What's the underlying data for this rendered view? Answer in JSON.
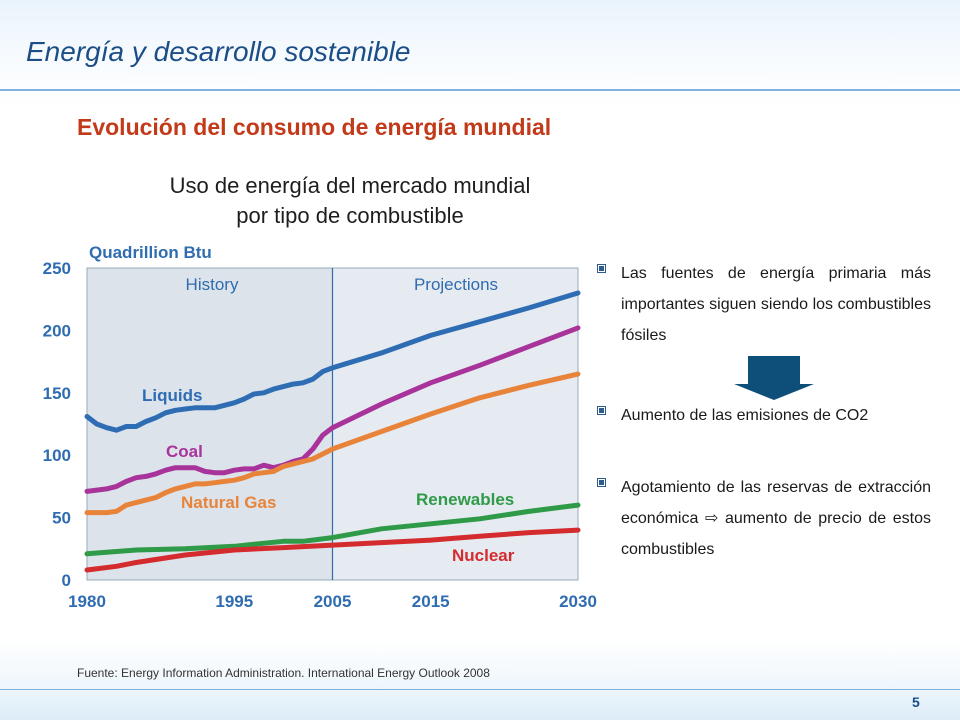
{
  "header": {
    "title": "Energía y desarrollo sostenible"
  },
  "subtitle": "Evolución del consumo de energía mundial",
  "chart_title": {
    "line1": "Uso de energía del mercado mundial",
    "line2": "por tipo de combustible"
  },
  "bullets": [
    {
      "text": "Las fuentes de energía primaria más importantes siguen siendo los combustibles fósiles"
    },
    {
      "text": "Aumento de las emisiones de CO2"
    },
    {
      "text": "Agotamiento de las reservas de extracción económica ⇨ aumento de precio de estos combustibles"
    }
  ],
  "icons": {
    "bullet": "square-bullet-icon",
    "arrow": "down-arrow-icon",
    "inline_arrow": "right-arrow-icon"
  },
  "source": "Fuente: Energy Information Administration. International Energy Outlook 2008",
  "page_number": "5",
  "colors": {
    "header": "#1b4d86",
    "subtitle": "#c23a19",
    "liquids": "#2e6db4",
    "coal": "#a8349b",
    "natural_gas": "#e8843a",
    "renewables": "#2f9a47",
    "nuclear": "#d42b2f",
    "axis_text": "#2f6cb0",
    "plot_bg": "#dde3ea",
    "arrow": "#0e4f7a"
  },
  "chart_data": {
    "type": "line",
    "unit_label": "Quadrillion Btu",
    "xlim": [
      1980,
      2030
    ],
    "ylim": [
      0,
      250
    ],
    "x_ticks": [
      1980,
      1995,
      2005,
      2015,
      2030
    ],
    "y_ticks": [
      0,
      50,
      100,
      150,
      200,
      250
    ],
    "grid": false,
    "divider_x": 2005,
    "region_labels": {
      "history": "History",
      "projections": "Projections"
    },
    "series": [
      {
        "name": "Liquids",
        "key": "liquids",
        "x": [
          1980,
          1981,
          1982,
          1983,
          1984,
          1985,
          1986,
          1987,
          1988,
          1989,
          1990,
          1991,
          1992,
          1993,
          1994,
          1995,
          1996,
          1997,
          1998,
          1999,
          2000,
          2001,
          2002,
          2003,
          2004,
          2005,
          2010,
          2015,
          2020,
          2025,
          2030
        ],
        "y": [
          131,
          125,
          122,
          120,
          123,
          123,
          127,
          130,
          134,
          136,
          137,
          138,
          138,
          138,
          140,
          142,
          145,
          149,
          150,
          153,
          155,
          157,
          158,
          161,
          167,
          170,
          182,
          196,
          207,
          218,
          230
        ]
      },
      {
        "name": "Coal",
        "key": "coal",
        "x": [
          1980,
          1981,
          1982,
          1983,
          1984,
          1985,
          1986,
          1987,
          1988,
          1989,
          1990,
          1991,
          1992,
          1993,
          1994,
          1995,
          1996,
          1997,
          1998,
          1999,
          2000,
          2001,
          2002,
          2003,
          2004,
          2005,
          2010,
          2015,
          2020,
          2025,
          2030
        ],
        "y": [
          71,
          72,
          73,
          75,
          79,
          82,
          83,
          85,
          88,
          90,
          90,
          90,
          87,
          86,
          86,
          88,
          89,
          89,
          92,
          90,
          92,
          95,
          97,
          105,
          116,
          122,
          141,
          158,
          172,
          187,
          202
        ]
      },
      {
        "name": "Natural Gas",
        "key": "natural_gas",
        "x": [
          1980,
          1981,
          1982,
          1983,
          1984,
          1985,
          1986,
          1987,
          1988,
          1989,
          1990,
          1991,
          1992,
          1993,
          1994,
          1995,
          1996,
          1997,
          1998,
          1999,
          2000,
          2001,
          2002,
          2003,
          2004,
          2005,
          2010,
          2015,
          2020,
          2025,
          2030
        ],
        "y": [
          54,
          54,
          54,
          55,
          60,
          62,
          64,
          66,
          70,
          73,
          75,
          77,
          77,
          78,
          79,
          80,
          82,
          85,
          86,
          87,
          91,
          93,
          95,
          97,
          101,
          105,
          119,
          133,
          146,
          156,
          165
        ]
      },
      {
        "name": "Renewables",
        "key": "renewables",
        "x": [
          1980,
          1985,
          1990,
          1995,
          2000,
          2002,
          2005,
          2010,
          2015,
          2020,
          2025,
          2030
        ],
        "y": [
          21,
          24,
          25,
          27,
          31,
          31,
          34,
          41,
          45,
          49,
          55,
          60
        ]
      },
      {
        "name": "Nuclear",
        "key": "nuclear",
        "x": [
          1980,
          1983,
          1985,
          1990,
          1995,
          2000,
          2005,
          2010,
          2015,
          2020,
          2025,
          2030
        ],
        "y": [
          8,
          11,
          14,
          20,
          24,
          26,
          28,
          30,
          32,
          35,
          38,
          40
        ]
      }
    ]
  }
}
